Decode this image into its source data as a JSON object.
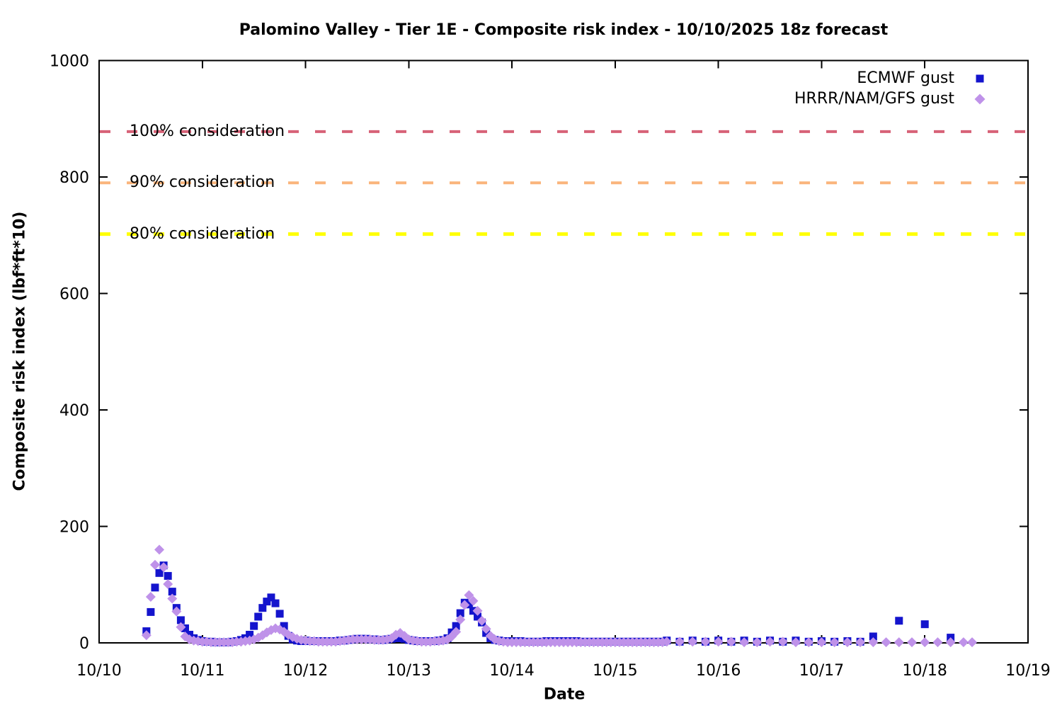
{
  "chart_data": {
    "type": "scatter",
    "title": "Palomino Valley - Tier 1E - Composite risk index - 10/10/2025 18z forecast",
    "xlabel": "Date",
    "ylabel": "Composite risk index (lbf*ft*10)",
    "x_tick_labels": [
      "10/10",
      "10/11",
      "10/12",
      "10/13",
      "10/14",
      "10/15",
      "10/16",
      "10/17",
      "10/18",
      "10/19"
    ],
    "y_ticks": [
      0,
      200,
      400,
      600,
      800,
      1000
    ],
    "ylim": [
      0,
      1000
    ],
    "x_range_days": [
      0,
      9
    ],
    "grid": false,
    "legend_position": "top-right-inside",
    "x_unit": "hours since 10/10 00:00",
    "thresholds": [
      {
        "label": "100% consideration",
        "value": 878,
        "color": "#d76277",
        "width": 4
      },
      {
        "label": "90% consideration",
        "value": 790,
        "color": "#fab57c",
        "width": 4
      },
      {
        "label": "80% consideration",
        "value": 702,
        "color": "#ffff00",
        "width": 5
      }
    ],
    "series": [
      {
        "name": "ECMWF gust",
        "marker": "square",
        "color": "#1414cd",
        "points": [
          [
            11,
            20
          ],
          [
            12,
            53
          ],
          [
            13,
            95
          ],
          [
            14,
            120
          ],
          [
            15,
            133
          ],
          [
            16,
            115
          ],
          [
            17,
            88
          ],
          [
            18,
            60
          ],
          [
            19,
            39
          ],
          [
            20,
            25
          ],
          [
            21,
            14
          ],
          [
            22,
            8
          ],
          [
            23,
            5
          ],
          [
            24,
            3
          ],
          [
            25,
            2
          ],
          [
            26,
            2
          ],
          [
            27,
            1
          ],
          [
            28,
            1
          ],
          [
            29,
            1
          ],
          [
            30,
            1
          ],
          [
            31,
            2
          ],
          [
            32,
            3
          ],
          [
            33,
            5
          ],
          [
            34,
            8
          ],
          [
            35,
            14
          ],
          [
            36,
            29
          ],
          [
            37,
            45
          ],
          [
            38,
            60
          ],
          [
            39,
            71
          ],
          [
            40,
            78
          ],
          [
            41,
            68
          ],
          [
            42,
            50
          ],
          [
            43,
            29
          ],
          [
            44,
            12
          ],
          [
            45,
            6
          ],
          [
            46,
            4
          ],
          [
            47,
            3
          ],
          [
            48,
            4
          ],
          [
            49,
            3
          ],
          [
            50,
            3
          ],
          [
            51,
            3
          ],
          [
            52,
            3
          ],
          [
            53,
            3
          ],
          [
            54,
            3
          ],
          [
            55,
            3
          ],
          [
            56,
            4
          ],
          [
            57,
            4
          ],
          [
            58,
            5
          ],
          [
            59,
            6
          ],
          [
            60,
            7
          ],
          [
            61,
            7
          ],
          [
            62,
            7
          ],
          [
            63,
            6
          ],
          [
            64,
            6
          ],
          [
            65,
            5
          ],
          [
            66,
            5
          ],
          [
            67,
            6
          ],
          [
            68,
            7
          ],
          [
            69,
            8
          ],
          [
            70,
            8
          ],
          [
            71,
            7
          ],
          [
            72,
            5
          ],
          [
            73,
            4
          ],
          [
            74,
            3
          ],
          [
            75,
            3
          ],
          [
            76,
            3
          ],
          [
            77,
            3
          ],
          [
            78,
            3
          ],
          [
            79,
            4
          ],
          [
            80,
            5
          ],
          [
            81,
            8
          ],
          [
            82,
            18
          ],
          [
            83,
            29
          ],
          [
            84,
            51
          ],
          [
            85,
            69
          ],
          [
            86,
            66
          ],
          [
            87,
            55
          ],
          [
            88,
            45
          ],
          [
            89,
            35
          ],
          [
            90,
            17
          ],
          [
            91,
            8
          ],
          [
            92,
            5
          ],
          [
            93,
            4
          ],
          [
            94,
            3
          ],
          [
            95,
            3
          ],
          [
            96,
            3
          ],
          [
            97,
            3
          ],
          [
            98,
            3
          ],
          [
            99,
            2
          ],
          [
            100,
            2
          ],
          [
            101,
            2
          ],
          [
            102,
            2
          ],
          [
            103,
            2
          ],
          [
            104,
            3
          ],
          [
            105,
            3
          ],
          [
            106,
            3
          ],
          [
            107,
            3
          ],
          [
            108,
            3
          ],
          [
            109,
            3
          ],
          [
            110,
            3
          ],
          [
            111,
            3
          ],
          [
            112,
            2
          ],
          [
            113,
            2
          ],
          [
            114,
            2
          ],
          [
            115,
            2
          ],
          [
            116,
            2
          ],
          [
            117,
            2
          ],
          [
            118,
            2
          ],
          [
            119,
            2
          ],
          [
            120,
            2
          ],
          [
            121,
            2
          ],
          [
            122,
            2
          ],
          [
            123,
            2
          ],
          [
            124,
            2
          ],
          [
            125,
            2
          ],
          [
            126,
            2
          ],
          [
            127,
            2
          ],
          [
            128,
            2
          ],
          [
            129,
            2
          ],
          [
            130,
            2
          ],
          [
            131,
            2
          ],
          [
            132,
            4
          ],
          [
            135,
            2
          ],
          [
            138,
            4
          ],
          [
            141,
            2
          ],
          [
            144,
            4
          ],
          [
            147,
            2
          ],
          [
            150,
            4
          ],
          [
            153,
            2
          ],
          [
            156,
            4
          ],
          [
            159,
            2
          ],
          [
            162,
            4
          ],
          [
            165,
            2
          ],
          [
            168,
            3
          ],
          [
            171,
            2
          ],
          [
            174,
            3
          ],
          [
            177,
            2
          ],
          [
            180,
            11
          ],
          [
            186,
            38
          ],
          [
            192,
            32
          ],
          [
            198,
            9
          ]
        ]
      },
      {
        "name": "HRRR/NAM/GFS gust",
        "marker": "diamond",
        "color": "#bf92e9",
        "points": [
          [
            11,
            13
          ],
          [
            12,
            79
          ],
          [
            13,
            134
          ],
          [
            14,
            160
          ],
          [
            15,
            130
          ],
          [
            16,
            101
          ],
          [
            17,
            76
          ],
          [
            18,
            54
          ],
          [
            19,
            27
          ],
          [
            20,
            11
          ],
          [
            21,
            6
          ],
          [
            22,
            4
          ],
          [
            23,
            3
          ],
          [
            24,
            2
          ],
          [
            25,
            2
          ],
          [
            26,
            1
          ],
          [
            27,
            1
          ],
          [
            28,
            1
          ],
          [
            29,
            1
          ],
          [
            30,
            1
          ],
          [
            31,
            1
          ],
          [
            32,
            2
          ],
          [
            33,
            2
          ],
          [
            34,
            3
          ],
          [
            35,
            4
          ],
          [
            36,
            6
          ],
          [
            37,
            9
          ],
          [
            38,
            13
          ],
          [
            39,
            18
          ],
          [
            40,
            22
          ],
          [
            41,
            25
          ],
          [
            42,
            23
          ],
          [
            43,
            19
          ],
          [
            44,
            14
          ],
          [
            45,
            10
          ],
          [
            46,
            7
          ],
          [
            47,
            5
          ],
          [
            48,
            4
          ],
          [
            49,
            3
          ],
          [
            50,
            3
          ],
          [
            51,
            2
          ],
          [
            52,
            2
          ],
          [
            53,
            2
          ],
          [
            54,
            2
          ],
          [
            55,
            2
          ],
          [
            56,
            3
          ],
          [
            57,
            4
          ],
          [
            58,
            5
          ],
          [
            59,
            6
          ],
          [
            60,
            6
          ],
          [
            61,
            6
          ],
          [
            62,
            6
          ],
          [
            63,
            6
          ],
          [
            64,
            5
          ],
          [
            65,
            5
          ],
          [
            66,
            5
          ],
          [
            67,
            6
          ],
          [
            68,
            8
          ],
          [
            69,
            14
          ],
          [
            70,
            17
          ],
          [
            71,
            12
          ],
          [
            72,
            6
          ],
          [
            73,
            4
          ],
          [
            74,
            3
          ],
          [
            75,
            2
          ],
          [
            76,
            2
          ],
          [
            77,
            2
          ],
          [
            78,
            3
          ],
          [
            79,
            3
          ],
          [
            80,
            4
          ],
          [
            81,
            6
          ],
          [
            82,
            11
          ],
          [
            83,
            19
          ],
          [
            84,
            40
          ],
          [
            85,
            65
          ],
          [
            86,
            82
          ],
          [
            87,
            72
          ],
          [
            88,
            55
          ],
          [
            89,
            38
          ],
          [
            90,
            24
          ],
          [
            91,
            12
          ],
          [
            92,
            6
          ],
          [
            93,
            3
          ],
          [
            94,
            2
          ],
          [
            95,
            1
          ],
          [
            96,
            1
          ],
          [
            97,
            1
          ],
          [
            98,
            1
          ],
          [
            99,
            1
          ],
          [
            100,
            1
          ],
          [
            101,
            1
          ],
          [
            102,
            1
          ],
          [
            103,
            1
          ],
          [
            104,
            1
          ],
          [
            105,
            1
          ],
          [
            106,
            1
          ],
          [
            107,
            1
          ],
          [
            108,
            1
          ],
          [
            109,
            1
          ],
          [
            110,
            1
          ],
          [
            111,
            1
          ],
          [
            112,
            1
          ],
          [
            113,
            1
          ],
          [
            114,
            1
          ],
          [
            115,
            1
          ],
          [
            116,
            1
          ],
          [
            117,
            1
          ],
          [
            118,
            1
          ],
          [
            119,
            1
          ],
          [
            120,
            1
          ],
          [
            121,
            1
          ],
          [
            122,
            1
          ],
          [
            123,
            1
          ],
          [
            124,
            1
          ],
          [
            125,
            1
          ],
          [
            126,
            1
          ],
          [
            127,
            1
          ],
          [
            128,
            1
          ],
          [
            129,
            1
          ],
          [
            130,
            1
          ],
          [
            131,
            1
          ],
          [
            132,
            2
          ],
          [
            135,
            2
          ],
          [
            138,
            2
          ],
          [
            141,
            2
          ],
          [
            144,
            2
          ],
          [
            147,
            2
          ],
          [
            150,
            1
          ],
          [
            153,
            1
          ],
          [
            156,
            2
          ],
          [
            159,
            2
          ],
          [
            162,
            1
          ],
          [
            165,
            1
          ],
          [
            168,
            1
          ],
          [
            171,
            1
          ],
          [
            174,
            1
          ],
          [
            177,
            1
          ],
          [
            180,
            1
          ],
          [
            183,
            1
          ],
          [
            186,
            1
          ],
          [
            189,
            1
          ],
          [
            192,
            1
          ],
          [
            195,
            1
          ],
          [
            198,
            1
          ],
          [
            201,
            1
          ],
          [
            203,
            1
          ]
        ]
      }
    ]
  }
}
